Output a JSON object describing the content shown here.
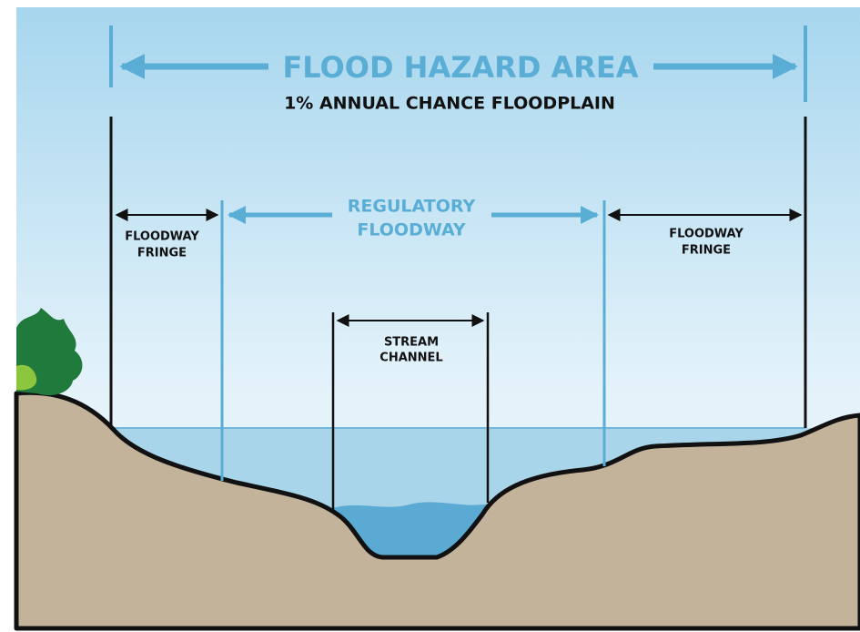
{
  "title": "FLOOD HAZARD AREA",
  "subtitle": "1% ANNUAL CHANCE FLOODPLAIN",
  "labels": {
    "left_fringe": [
      "FLOODWAY",
      "FRINGE"
    ],
    "regulatory_floodway": [
      "REGULATORY",
      "FLOODWAY"
    ],
    "right_fringe": [
      "FLOODWAY",
      "FRINGE"
    ],
    "stream_channel": [
      "STREAM",
      "CHANNEL"
    ]
  }
}
